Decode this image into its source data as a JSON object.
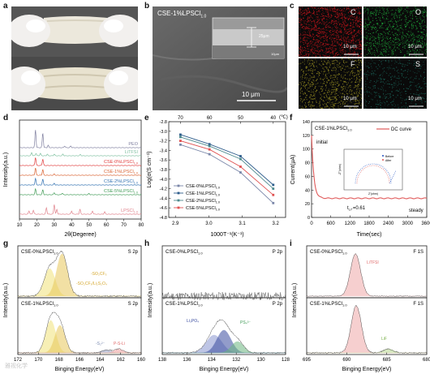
{
  "panel_labels": {
    "a": "a",
    "b": "b",
    "c": "c",
    "d": "d",
    "e": "e",
    "f": "f",
    "g": "g",
    "h": "h",
    "i": "i"
  },
  "sem": {
    "sample_label": "CSE-1%LPSCl",
    "sample_sub": "1.0",
    "scale_bar": "10 μm",
    "inset_thickness": "25μm",
    "inset_bar": "10μm"
  },
  "eds": [
    {
      "element": "C",
      "color": "#c4151c",
      "scale": "10 μm"
    },
    {
      "element": "O",
      "color": "#1fa83a",
      "scale": "10 μm"
    },
    {
      "element": "F",
      "color": "#9c9222",
      "scale": "10 μm"
    },
    {
      "element": "S",
      "color": "#1b6b5e",
      "scale": "10 μm"
    }
  ],
  "chart_data": [
    {
      "id": "d",
      "type": "line",
      "xlabel": "2θ(Degeree)",
      "ylabel": "Intensity(a.u.)",
      "xticks": [
        "10",
        "20",
        "30",
        "40",
        "50",
        "60",
        "70",
        "80"
      ],
      "xlim": [
        10,
        80
      ],
      "series": [
        {
          "name": "PEO",
          "color": "#7f7f9f"
        },
        {
          "name": "LiTFSI",
          "color": "#7fc0a0"
        },
        {
          "name": "CSE-0%LPSCl",
          "sub": "1.0",
          "color": "#e03c3c"
        },
        {
          "name": "CSE-1%LPSCl",
          "sub": "1.0",
          "color": "#d9602f"
        },
        {
          "name": "CSE-2%LPSCl",
          "sub": "1.0",
          "color": "#2f6fb0"
        },
        {
          "name": "CSE-5%LPSCl",
          "sub": "1.0",
          "color": "#3f9a55"
        },
        {
          "name": "LPSCl",
          "sub": "1.0",
          "color": "#e0808a"
        }
      ]
    },
    {
      "id": "e",
      "type": "line",
      "xlabel": "1000T⁻¹(K⁻¹)",
      "ylabel": "Log(σ(S cm⁻¹)",
      "top_unit": "(℃)",
      "top_ticks": [
        "70",
        "60",
        "50",
        "40"
      ],
      "xticks": [
        "2.9",
        "3.0",
        "3.1",
        "3.2"
      ],
      "yticks": [
        "-2.8",
        "-3.0",
        "-3.2",
        "-3.4",
        "-3.6",
        "-3.8",
        "-4.0",
        "-4.2",
        "-4.4",
        "-4.6",
        "-4.8"
      ],
      "x": [
        2.915,
        3.002,
        3.095,
        3.193
      ],
      "xlim": [
        2.88,
        3.23
      ],
      "ylim": [
        -4.8,
        -2.8
      ],
      "series": [
        {
          "name": "CSE-0%LPSCl",
          "sub": "1.0",
          "color": "#7a86a8",
          "values": [
            -3.28,
            -3.48,
            -3.86,
            -4.5
          ]
        },
        {
          "name": "CSE-1%LPSCl",
          "sub": "1.0",
          "color": "#2e5d8c",
          "values": [
            -3.07,
            -3.27,
            -3.52,
            -4.12
          ]
        },
        {
          "name": "CSE-2%LPSCl",
          "sub": "1.0",
          "color": "#4e8a8e",
          "values": [
            -3.12,
            -3.31,
            -3.58,
            -4.2
          ]
        },
        {
          "name": "CSE-5%LPSCl",
          "sub": "1.0",
          "color": "#e05252",
          "values": [
            -3.2,
            -3.38,
            -3.74,
            -4.33
          ]
        }
      ]
    },
    {
      "id": "f",
      "type": "line",
      "title": "CSE-1%LPSCl",
      "title_sub": "1.0",
      "xlabel": "Time(sec)",
      "ylabel": "Current(μA)",
      "xticks": [
        "0",
        "600",
        "1200",
        "1800",
        "2400",
        "3000",
        "3600"
      ],
      "yticks": [
        "0",
        "20",
        "40",
        "60",
        "80",
        "100",
        "120",
        "140"
      ],
      "xlim": [
        0,
        3600
      ],
      "ylim": [
        0,
        140
      ],
      "series": [
        {
          "name": "DC curve",
          "color": "#e05a5a"
        }
      ],
      "annotations": {
        "initial": "initial",
        "steady": "steady",
        "t_label": "t",
        "t_sub": "Li⁺",
        "t_value": "=0.61"
      },
      "inset": {
        "xlabel": "Z'(ohm)",
        "ylabel": "-Z''(ohm)",
        "legend": [
          "Before",
          "After"
        ]
      }
    },
    {
      "id": "g",
      "type": "line",
      "xlabel": "Binging Energy(eV)",
      "ylabel": "Intensity(a.u.)",
      "xticks": [
        "172",
        "170",
        "168",
        "166",
        "164",
        "162",
        "160"
      ],
      "xlim": [
        172,
        160
      ],
      "top": {
        "sample": "CSE-0%LPSCl",
        "sub": "1.0",
        "orbital": "S 2p",
        "peaks": [
          "-SO₂CF₃",
          "-SO₂CF₃/Li₂S₂O₄"
        ]
      },
      "bottom": {
        "sample": "CSE-1%LPSCl",
        "sub": "1.0",
        "orbital": "S 2p",
        "peaks": [
          "-S₂²⁻",
          "P-S-Li"
        ]
      }
    },
    {
      "id": "h",
      "type": "line",
      "xlabel": "Binging Energy(eV)",
      "ylabel": "Intensity(a.u.)",
      "xticks": [
        "138",
        "136",
        "134",
        "132",
        "130",
        "128"
      ],
      "xlim": [
        138,
        128
      ],
      "top": {
        "sample": "CSE-0%LPSCl",
        "sub": "1.0",
        "orbital": "P 2p"
      },
      "bottom": {
        "sample": "CSE-1%LPSCl",
        "sub": "1.0",
        "orbital": "P 2p",
        "peaks": [
          "Li₃PO₄",
          "PS₄³⁻"
        ]
      }
    },
    {
      "id": "i",
      "type": "line",
      "xlabel": "Binging Energy(eV)",
      "ylabel": "Intensity(a.u.)",
      "xticks": [
        "695",
        "690",
        "685",
        "680"
      ],
      "xlim": [
        695,
        680
      ],
      "top": {
        "sample": "CSE-0%LPSCl",
        "sub": "1.0",
        "orbital": "F 1S",
        "peaks": [
          "LiTFSI"
        ]
      },
      "bottom": {
        "sample": "CSE-1%LPSCl",
        "sub": "1.0",
        "orbital": "F 1S",
        "peaks": [
          "LiF"
        ]
      }
    }
  ],
  "watermark": "雅视化学"
}
